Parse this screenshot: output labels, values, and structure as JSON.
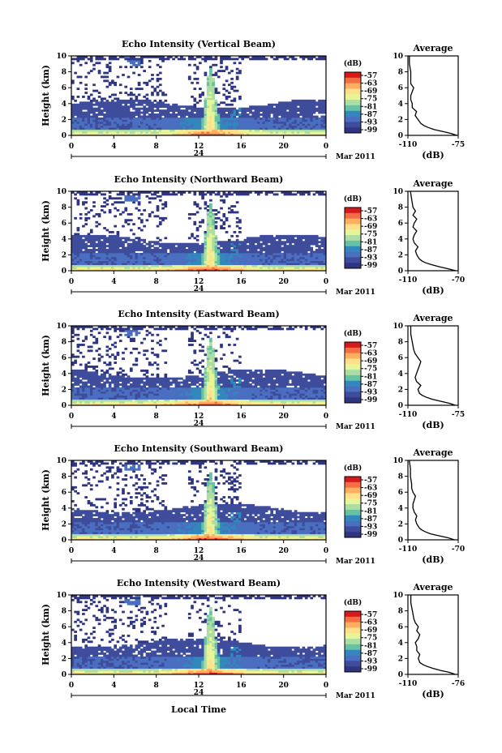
{
  "figure": {
    "xlabel": "Local Time",
    "date_label": "Mar 2011",
    "day_label": "24",
    "colorbar_label": "(dB)",
    "colorbar_ticks": [
      "-57",
      "-63",
      "-69",
      "-75",
      "-81",
      "-87",
      "-93",
      "-99"
    ],
    "colorbar_colors": [
      "#d7191c",
      "#f46d43",
      "#fdae61",
      "#fee08b",
      "#e6f598",
      "#abdda4",
      "#66c2a5",
      "#3288bd",
      "#4a6fc0",
      "#3f4c9c",
      "#2f3580"
    ],
    "profile_title": "Average",
    "profile_xlabel": "(dB)"
  },
  "chart_data": [
    {
      "type": "heatmap",
      "title": "Echo Intensity (Vertical Beam)",
      "ylabel": "Height (km)",
      "xlim": [
        0,
        24
      ],
      "ylim": [
        0,
        10
      ],
      "xticks": [
        "0",
        "4",
        "8",
        "12",
        "16",
        "20",
        "0"
      ],
      "yticks": [
        "0",
        "2",
        "4",
        "6",
        "8",
        "10"
      ],
      "zlim": [
        -99,
        -57
      ],
      "profile": {
        "xticks": [
          "-110",
          "-75"
        ],
        "xlim": [
          -110,
          -75
        ],
        "yticks": [
          "0",
          "2",
          "4",
          "6",
          "8",
          "10"
        ],
        "heights": [
          0,
          0.25,
          0.5,
          0.75,
          1,
          1.25,
          1.5,
          2,
          2.5,
          3,
          3.5,
          4,
          4.5,
          5,
          5.5,
          6,
          6.5,
          7,
          8,
          9,
          10
        ],
        "values": [
          -76,
          -80,
          -86,
          -92,
          -96,
          -99,
          -101,
          -103,
          -105,
          -104,
          -107,
          -107,
          -108,
          -108,
          -107,
          -106,
          -108,
          -108,
          -108,
          -109,
          -109
        ]
      }
    },
    {
      "type": "heatmap",
      "title": "Echo Intensity (Northward Beam)",
      "ylabel": "Height (km)",
      "xlim": [
        0,
        24
      ],
      "ylim": [
        0,
        10
      ],
      "xticks": [
        "0",
        "4",
        "8",
        "12",
        "16",
        "20",
        "0"
      ],
      "yticks": [
        "0",
        "2",
        "4",
        "6",
        "8",
        "10"
      ],
      "zlim": [
        -99,
        -57
      ],
      "profile": {
        "xticks": [
          "-110",
          "-70"
        ],
        "xlim": [
          -110,
          -70
        ],
        "yticks": [
          "0",
          "2",
          "4",
          "6",
          "8",
          "10"
        ],
        "heights": [
          0,
          0.25,
          0.5,
          0.75,
          1,
          1.25,
          1.5,
          2,
          2.5,
          3,
          3.5,
          4,
          4.5,
          5,
          5.5,
          6,
          6.5,
          7,
          7.5,
          8,
          9,
          10
        ],
        "values": [
          -72,
          -78,
          -85,
          -91,
          -96,
          -99,
          -101,
          -103,
          -104,
          -102,
          -105,
          -106,
          -105,
          -103,
          -106,
          -105,
          -103,
          -106,
          -104,
          -106,
          -107,
          -108
        ]
      }
    },
    {
      "type": "heatmap",
      "title": "Echo Intensity (Eastward Beam)",
      "ylabel": "Height (km)",
      "xlim": [
        0,
        24
      ],
      "ylim": [
        0,
        10
      ],
      "xticks": [
        "0",
        "4",
        "8",
        "12",
        "16",
        "20",
        "0"
      ],
      "yticks": [
        "0",
        "2",
        "4",
        "6",
        "8",
        "10"
      ],
      "zlim": [
        -99,
        -57
      ],
      "profile": {
        "xticks": [
          "-110",
          "-75"
        ],
        "xlim": [
          -110,
          -75
        ],
        "yticks": [
          "0",
          "2",
          "4",
          "6",
          "8",
          "10"
        ],
        "heights": [
          0,
          0.25,
          0.5,
          0.75,
          1,
          1.25,
          1.5,
          2,
          2.5,
          3,
          3.5,
          4,
          4.5,
          5,
          5.5,
          6,
          6.5,
          7,
          8,
          9,
          10
        ],
        "values": [
          -77,
          -81,
          -87,
          -93,
          -97,
          -100,
          -102,
          -103,
          -101,
          -104,
          -105,
          -104,
          -103,
          -102,
          -101,
          -103,
          -105,
          -106,
          -107,
          -108,
          -108
        ]
      }
    },
    {
      "type": "heatmap",
      "title": "Echo Intensity (Southward Beam)",
      "ylabel": "Height (km)",
      "xlim": [
        0,
        24
      ],
      "ylim": [
        0,
        10
      ],
      "xticks": [
        "0",
        "4",
        "8",
        "12",
        "16",
        "20",
        "0"
      ],
      "yticks": [
        "0",
        "2",
        "4",
        "6",
        "8",
        "10"
      ],
      "zlim": [
        -99,
        -57
      ],
      "profile": {
        "xticks": [
          "-110",
          "-70"
        ],
        "xlim": [
          -110,
          -70
        ],
        "yticks": [
          "0",
          "2",
          "4",
          "6",
          "8",
          "10"
        ],
        "heights": [
          0,
          0.25,
          0.5,
          0.75,
          1,
          1.25,
          1.5,
          2,
          2.5,
          3,
          3.5,
          4,
          4.5,
          5,
          5.5,
          6,
          6.5,
          7,
          8,
          9,
          10
        ],
        "values": [
          -73,
          -78,
          -85,
          -92,
          -96,
          -99,
          -101,
          -103,
          -104,
          -103,
          -105,
          -106,
          -106,
          -105,
          -104,
          -106,
          -107,
          -107,
          -108,
          -108,
          -109
        ]
      }
    },
    {
      "type": "heatmap",
      "title": "Echo Intensity (Westward Beam)",
      "ylabel": "Height (km)",
      "xlim": [
        0,
        24
      ],
      "ylim": [
        0,
        10
      ],
      "xticks": [
        "0",
        "4",
        "8",
        "12",
        "16",
        "20",
        "0"
      ],
      "yticks": [
        "0",
        "2",
        "4",
        "6",
        "8",
        "10"
      ],
      "zlim": [
        -99,
        -57
      ],
      "profile": {
        "xticks": [
          "-110",
          "-76"
        ],
        "xlim": [
          -110,
          -76
        ],
        "yticks": [
          "0",
          "2",
          "4",
          "6",
          "8",
          "10"
        ],
        "heights": [
          0,
          0.25,
          0.5,
          0.75,
          1,
          1.25,
          1.5,
          2,
          2.5,
          3,
          3.5,
          4,
          4.5,
          5,
          5.5,
          6,
          6.5,
          7,
          8,
          9,
          10
        ],
        "values": [
          -78,
          -82,
          -88,
          -93,
          -97,
          -100,
          -102,
          -103,
          -102,
          -104,
          -104,
          -105,
          -103,
          -102,
          -104,
          -103,
          -105,
          -106,
          -107,
          -108,
          -108
        ]
      }
    }
  ]
}
